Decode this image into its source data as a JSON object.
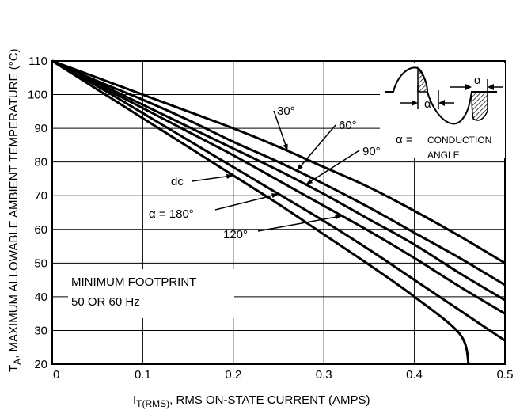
{
  "chart_data": {
    "type": "line",
    "title": "",
    "xlabel": {
      "prefix": "I",
      "subscript": "T(RMS)",
      "suffix": ", RMS ON-STATE CURRENT (AMPS)"
    },
    "ylabel": {
      "prefix": "T",
      "subscript": "A",
      "suffix": ", MAXIMUM ALLOWABLE AMBIENT TEMPERATURE (°C)"
    },
    "xlim": [
      0,
      0.5
    ],
    "ylim": [
      20,
      110
    ],
    "xticks": [
      "0",
      "0.1",
      "0.2",
      "0.3",
      "0.4",
      "0.5"
    ],
    "yticks": [
      "20",
      "30",
      "40",
      "50",
      "60",
      "70",
      "80",
      "90",
      "100",
      "110"
    ],
    "grid": true,
    "series": [
      {
        "name": "30°",
        "x": [
          0,
          0.05,
          0.1,
          0.15,
          0.2,
          0.25,
          0.3,
          0.35,
          0.4,
          0.45,
          0.5
        ],
        "y": [
          110,
          105,
          100,
          95,
          90,
          84.5,
          78.5,
          72.5,
          65.5,
          58,
          50
        ]
      },
      {
        "name": "60°",
        "x": [
          0,
          0.05,
          0.1,
          0.15,
          0.2,
          0.25,
          0.3,
          0.35,
          0.4,
          0.45,
          0.5
        ],
        "y": [
          110,
          104,
          98.5,
          92.5,
          86,
          80,
          73.5,
          66.5,
          59,
          51.5,
          43.5
        ]
      },
      {
        "name": "90°",
        "x": [
          0,
          0.05,
          0.1,
          0.15,
          0.2,
          0.25,
          0.3,
          0.35,
          0.4,
          0.45,
          0.5
        ],
        "y": [
          110,
          103.5,
          97,
          90.5,
          84,
          77.5,
          70.5,
          63,
          55.5,
          47,
          39
        ]
      },
      {
        "name": "120°",
        "x": [
          0,
          0.05,
          0.1,
          0.15,
          0.2,
          0.25,
          0.3,
          0.35,
          0.4,
          0.45,
          0.5
        ],
        "y": [
          110,
          103,
          96,
          89,
          82,
          74.5,
          67,
          59.5,
          51.5,
          43,
          35
        ]
      },
      {
        "name": "α = 180°",
        "x": [
          0,
          0.05,
          0.1,
          0.15,
          0.2,
          0.25,
          0.3,
          0.35,
          0.4,
          0.45,
          0.5
        ],
        "y": [
          110,
          102.5,
          94.5,
          86.5,
          78.5,
          70.5,
          62.5,
          54,
          45,
          36,
          27
        ]
      },
      {
        "name": "dc",
        "x": [
          0,
          0.05,
          0.1,
          0.15,
          0.2,
          0.25,
          0.3,
          0.35,
          0.4,
          0.45,
          0.46
        ],
        "y": [
          110,
          101.5,
          93,
          84.5,
          76,
          67.5,
          58.5,
          49.5,
          40,
          29,
          20
        ]
      }
    ],
    "annotations": {
      "footprint": "MINIMUM FOOTPRINT",
      "frequency": "50 OR 60 Hz",
      "alpha_symbol": "α",
      "alpha_def_prefix": "α =",
      "conduction": "CONDUCTION",
      "angle": "ANGLE"
    }
  }
}
